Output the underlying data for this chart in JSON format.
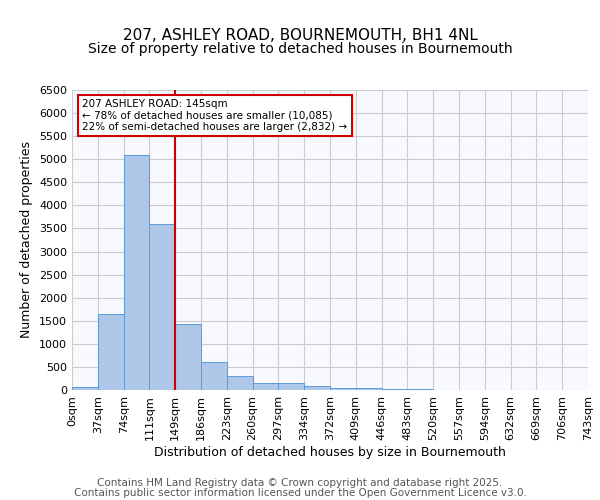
{
  "title_line1": "207, ASHLEY ROAD, BOURNEMOUTH, BH1 4NL",
  "title_line2": "Size of property relative to detached houses in Bournemouth",
  "xlabel": "Distribution of detached houses by size in Bournemouth",
  "ylabel": "Number of detached properties",
  "bin_labels": [
    "0sqm",
    "37sqm",
    "74sqm",
    "111sqm",
    "149sqm",
    "186sqm",
    "223sqm",
    "260sqm",
    "297sqm",
    "334sqm",
    "372sqm",
    "409sqm",
    "446sqm",
    "483sqm",
    "520sqm",
    "557sqm",
    "594sqm",
    "632sqm",
    "669sqm",
    "706sqm",
    "743sqm"
  ],
  "bar_heights": [
    70,
    1650,
    5100,
    3600,
    1420,
    600,
    310,
    160,
    145,
    95,
    50,
    35,
    20,
    15,
    10,
    5,
    2,
    1,
    0,
    0
  ],
  "bar_color": "#aec6e8",
  "bar_edge_color": "#5b9bd5",
  "vline_color": "#cc0000",
  "vline_x_index": 4,
  "annotation_text": "207 ASHLEY ROAD: 145sqm\n← 78% of detached houses are smaller (10,085)\n22% of semi-detached houses are larger (2,832) →",
  "annotation_box_color": "#cc0000",
  "ylim": [
    0,
    6500
  ],
  "yticks": [
    0,
    500,
    1000,
    1500,
    2000,
    2500,
    3000,
    3500,
    4000,
    4500,
    5000,
    5500,
    6000,
    6500
  ],
  "grid_color": "#cccccc",
  "background_color": "#f8f8ff",
  "footer_line1": "Contains HM Land Registry data © Crown copyright and database right 2025.",
  "footer_line2": "Contains public sector information licensed under the Open Government Licence v3.0.",
  "footer_color": "#555555",
  "title_fontsize": 11,
  "subtitle_fontsize": 10,
  "axis_label_fontsize": 9,
  "tick_fontsize": 8,
  "footer_fontsize": 7.5
}
